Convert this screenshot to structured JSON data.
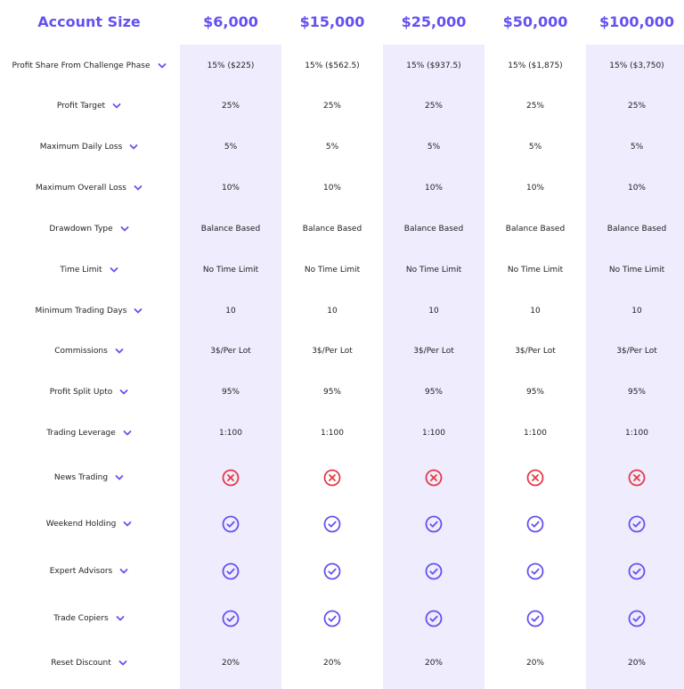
{
  "header": {
    "title": "Account Size",
    "plans": [
      "$6,000",
      "$15,000",
      "$25,000",
      "$50,000",
      "$100,000"
    ]
  },
  "colors": {
    "accent": "#6352f0",
    "highlight_column": "#eeecfd",
    "cross": "#e53945",
    "check": "#6352f0"
  },
  "rows": [
    {
      "label": "Profit Share From Challenge Phase",
      "values": [
        "15% ($225)",
        "15% ($562.5)",
        "15% ($937.5)",
        "15% ($1,875)",
        "15% ($3,750)"
      ]
    },
    {
      "label": "Profit Target",
      "values": [
        "25%",
        "25%",
        "25%",
        "25%",
        "25%"
      ]
    },
    {
      "label": "Maximum Daily Loss",
      "values": [
        "5%",
        "5%",
        "5%",
        "5%",
        "5%"
      ]
    },
    {
      "label": "Maximum Overall Loss",
      "values": [
        "10%",
        "10%",
        "10%",
        "10%",
        "10%"
      ]
    },
    {
      "label": "Drawdown Type",
      "values": [
        "Balance Based",
        "Balance Based",
        "Balance Based",
        "Balance Based",
        "Balance Based"
      ]
    },
    {
      "label": "Time Limit",
      "values": [
        "No Time Limit",
        "No Time Limit",
        "No Time Limit",
        "No Time Limit",
        "No Time Limit"
      ]
    },
    {
      "label": "Minimum Trading Days",
      "values": [
        "10",
        "10",
        "10",
        "10",
        "10"
      ]
    },
    {
      "label": "Commissions",
      "values": [
        "3$/Per Lot",
        "3$/Per Lot",
        "3$/Per Lot",
        "3$/Per Lot",
        "3$/Per Lot"
      ]
    },
    {
      "label": "Profit Split Upto",
      "values": [
        "95%",
        "95%",
        "95%",
        "95%",
        "95%"
      ]
    },
    {
      "label": "Trading Leverage",
      "values": [
        "1:100",
        "1:100",
        "1:100",
        "1:100",
        "1:100"
      ]
    },
    {
      "label": "News Trading",
      "icon": "cross-circle-icon"
    },
    {
      "label": "Weekend Holding",
      "icon": "check-circle-icon"
    },
    {
      "label": "Expert Advisors",
      "icon": "check-circle-icon"
    },
    {
      "label": "Trade Copiers",
      "icon": "check-circle-icon"
    },
    {
      "label": "Reset Discount",
      "values": [
        "20%",
        "20%",
        "20%",
        "20%",
        "20%"
      ]
    }
  ]
}
